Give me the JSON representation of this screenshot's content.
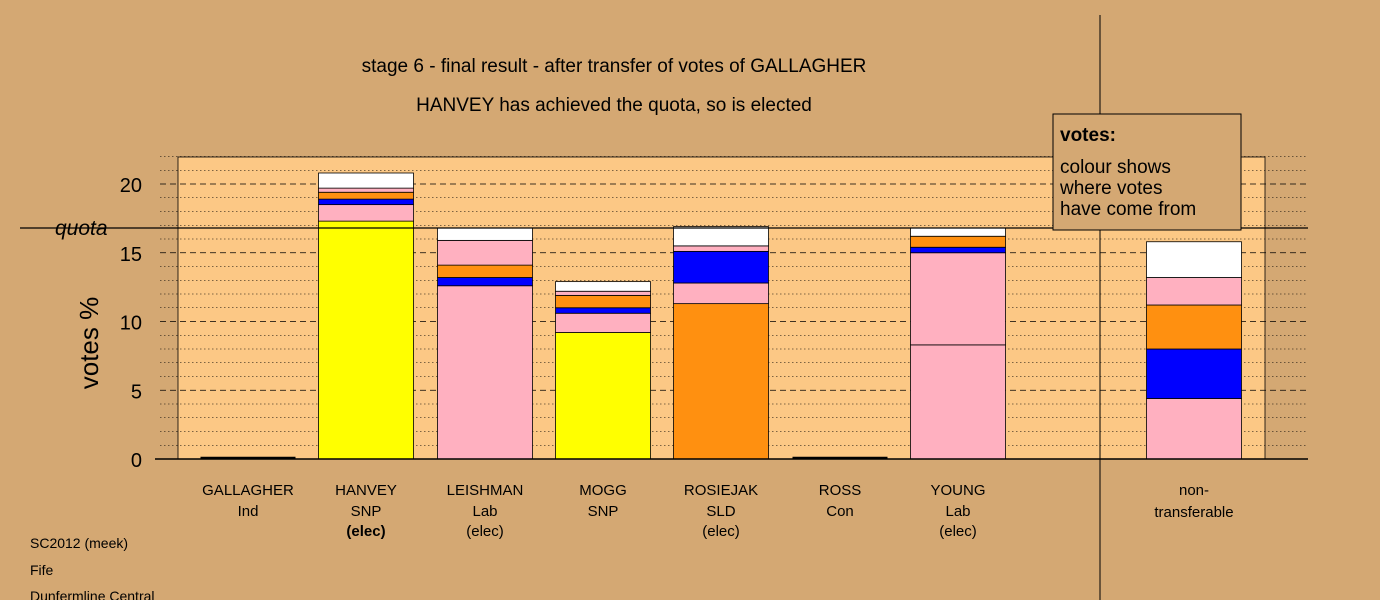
{
  "chart_data": {
    "type": "bar",
    "stacked": true,
    "title": "stage 6 - final result - after transfer of votes of GALLAGHER",
    "subtitle": "HANVEY has achieved the quota, so is elected",
    "ylabel": "votes %",
    "xlabel": "",
    "ylim": [
      0,
      22
    ],
    "y_ticks": [
      "0",
      "5",
      "10",
      "15",
      "20"
    ],
    "y_tick_values": [
      0,
      5,
      10,
      15,
      20
    ],
    "quota_label": "quota",
    "quota_value": 16.8,
    "grid": true,
    "legend": {
      "title": "votes:",
      "lines": [
        "colour shows",
        "where votes",
        "have come from"
      ],
      "placement": "top-right"
    },
    "colors": {
      "background": "#d4a873",
      "plot_area": "#fcc885",
      "yellow": "#ffff00",
      "pink": "#ffb0c0",
      "blue": "#0000ff",
      "orange": "#ff9010",
      "white": "#ffffff",
      "line": "#000000"
    },
    "categories": [
      {
        "name": "GALLAGHER",
        "party": "Ind",
        "status": "",
        "status_bold": false,
        "segments": []
      },
      {
        "name": "HANVEY",
        "party": "SNP",
        "status": "(elec)",
        "status_bold": true,
        "segments": [
          {
            "color": "yellow",
            "value": 17.3
          },
          {
            "color": "pink",
            "value": 1.2
          },
          {
            "color": "blue",
            "value": 0.4
          },
          {
            "color": "orange",
            "value": 0.5
          },
          {
            "color": "pink",
            "value": 0.3
          },
          {
            "color": "white",
            "value": 1.1
          }
        ]
      },
      {
        "name": "LEISHMAN",
        "party": "Lab",
        "status": "(elec)",
        "status_bold": false,
        "segments": [
          {
            "color": "pink",
            "value": 12.6
          },
          {
            "color": "blue",
            "value": 0.6
          },
          {
            "color": "orange",
            "value": 0.9
          },
          {
            "color": "pink",
            "value": 1.8
          },
          {
            "color": "white",
            "value": 0.9
          }
        ]
      },
      {
        "name": "MOGG",
        "party": "SNP",
        "status": "",
        "status_bold": false,
        "segments": [
          {
            "color": "yellow",
            "value": 9.2
          },
          {
            "color": "pink",
            "value": 1.4
          },
          {
            "color": "blue",
            "value": 0.4
          },
          {
            "color": "orange",
            "value": 0.9
          },
          {
            "color": "pink",
            "value": 0.3
          },
          {
            "color": "white",
            "value": 0.7
          }
        ]
      },
      {
        "name": "ROSIEJAK",
        "party": "SLD",
        "status": "(elec)",
        "status_bold": false,
        "segments": [
          {
            "color": "orange",
            "value": 11.3
          },
          {
            "color": "pink",
            "value": 1.5
          },
          {
            "color": "blue",
            "value": 2.3
          },
          {
            "color": "pink",
            "value": 0.4
          },
          {
            "color": "white",
            "value": 1.4
          }
        ]
      },
      {
        "name": "ROSS",
        "party": "Con",
        "status": "",
        "status_bold": false,
        "segments": []
      },
      {
        "name": "YOUNG",
        "party": "Lab",
        "status": "(elec)",
        "status_bold": false,
        "segments": [
          {
            "color": "pink",
            "value": 8.3
          },
          {
            "color": "pink",
            "value": 6.7
          },
          {
            "color": "blue",
            "value": 0.4
          },
          {
            "color": "orange",
            "value": 0.8
          },
          {
            "color": "white",
            "value": 0.6
          }
        ]
      }
    ],
    "non_transferable": {
      "label_line1": "non-",
      "label_line2": "transferable",
      "segments": [
        {
          "color": "pink",
          "value": 4.4
        },
        {
          "color": "blue",
          "value": 3.6
        },
        {
          "color": "orange",
          "value": 3.2
        },
        {
          "color": "pink",
          "value": 2.0
        },
        {
          "color": "white",
          "value": 2.6
        }
      ]
    }
  },
  "footer": {
    "line1": "SC2012 (meek)",
    "line2": "Fife",
    "line3": "Dunfermline Central"
  }
}
